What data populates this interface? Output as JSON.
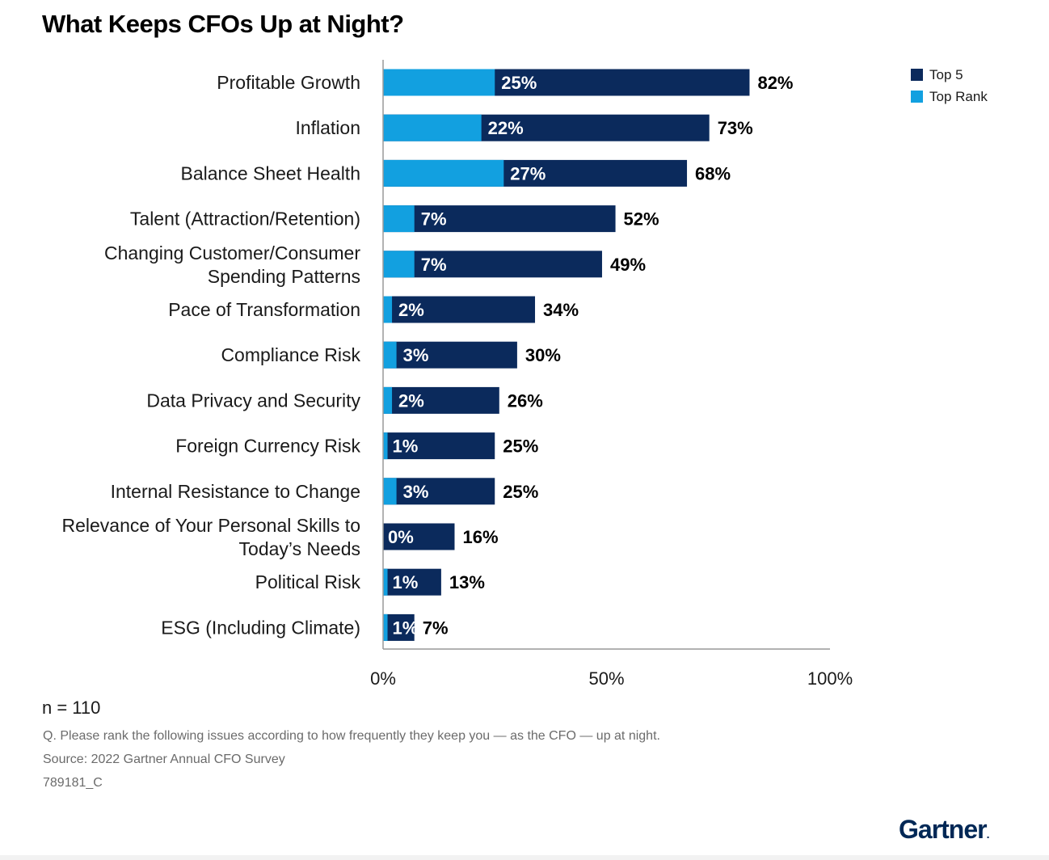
{
  "title": "What Keeps CFOs Up at Night?",
  "colors": {
    "top5": "#0b2a5c",
    "top_rank": "#12a0e0",
    "axis": "#999999"
  },
  "chart_data": {
    "type": "bar",
    "orientation": "horizontal",
    "title": "What Keeps CFOs Up at Night?",
    "categories": [
      [
        "Profitable Growth"
      ],
      [
        "Inflation"
      ],
      [
        "Balance Sheet Health"
      ],
      [
        "Talent (Attraction/Retention)"
      ],
      [
        "Changing Customer/Consumer",
        "Spending Patterns"
      ],
      [
        "Pace of Transformation"
      ],
      [
        "Compliance Risk"
      ],
      [
        "Data Privacy and Security"
      ],
      [
        "Foreign Currency Risk"
      ],
      [
        "Internal Resistance to Change"
      ],
      [
        "Relevance of Your Personal Skills to",
        "Today’s Needs"
      ],
      [
        "Political Risk"
      ],
      [
        "ESG (Including Climate)"
      ]
    ],
    "series": [
      {
        "name": "Top 5",
        "values": [
          82,
          73,
          68,
          52,
          49,
          34,
          30,
          26,
          25,
          25,
          16,
          13,
          7
        ]
      },
      {
        "name": "Top Rank",
        "values": [
          25,
          22,
          27,
          7,
          7,
          2,
          3,
          2,
          1,
          3,
          0,
          1,
          1
        ]
      }
    ],
    "value_suffix": "%",
    "xlim": [
      0,
      100
    ],
    "xticks": [
      "0%",
      "50%",
      "100%"
    ],
    "legend": {
      "placement": "top-right",
      "entries": [
        "Top 5",
        "Top Rank"
      ]
    },
    "grid": false
  },
  "footnote": {
    "n": "n = 110",
    "question": "Q. Please rank the following issues according to how frequently they keep you — as the CFO — up at night.",
    "source": "Source: 2022 Gartner Annual CFO Survey",
    "id": "789181_C"
  },
  "logo": {
    "text": "Gartner",
    "mark": "."
  }
}
